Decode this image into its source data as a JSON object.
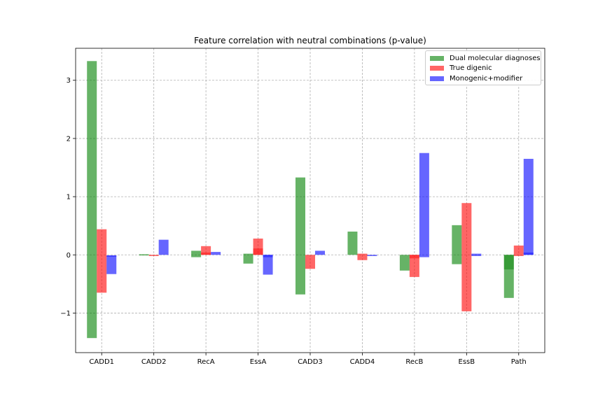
{
  "chart_data": {
    "type": "bar",
    "title": "Feature correlation with neutral combinations (p-value)",
    "xlabel": "",
    "ylabel": "",
    "categories": [
      "CADD1",
      "CADD2",
      "RecA",
      "EssA",
      "CADD3",
      "CADD4",
      "RecB",
      "EssB",
      "Path"
    ],
    "ylim": [
      -1.68,
      3.55
    ],
    "yticks": [
      -1,
      0,
      1,
      2,
      3
    ],
    "grid": true,
    "legend_position": "top-right",
    "series": [
      {
        "name": "Dual molecular diagnoses",
        "color": "#008000",
        "bars": [
          {
            "top": 3.33,
            "bottom": -1.43
          },
          {
            "top": 0.01,
            "bottom": -0.01
          },
          {
            "top": 0.07,
            "bottom": -0.04
          },
          {
            "top": 0.02,
            "bottom": -0.15
          },
          {
            "top": 1.33,
            "bottom": -0.68
          },
          {
            "top": 0.4,
            "bottom": 0.0
          },
          {
            "top": 0.0,
            "bottom": -0.27
          },
          {
            "top": 0.51,
            "bottom": -0.16
          },
          {
            "top": 0.0,
            "bottom": -0.74,
            "dark_segment": [
              -0.25,
              0.0
            ]
          }
        ]
      },
      {
        "name": "True digenic",
        "color": "#ff0000",
        "bars": [
          {
            "top": 0.44,
            "bottom": -0.65
          },
          {
            "top": 0.0,
            "bottom": -0.02
          },
          {
            "top": 0.15,
            "bottom": 0.0,
            "dark_segment": [
              0.0,
              0.04
            ]
          },
          {
            "top": 0.28,
            "bottom": 0.0,
            "dark_segment": [
              0.0,
              0.11
            ]
          },
          {
            "top": 0.0,
            "bottom": -0.24
          },
          {
            "top": 0.02,
            "bottom": -0.09
          },
          {
            "top": 0.0,
            "bottom": -0.38,
            "dark_segment": [
              -0.06,
              0.0
            ]
          },
          {
            "top": 0.89,
            "bottom": -0.97
          },
          {
            "top": 0.16,
            "bottom": -0.02
          }
        ]
      },
      {
        "name": "Monogenic+modifier",
        "color": "#0000ff",
        "bars": [
          {
            "top": -0.01,
            "bottom": -0.33,
            "dark_segment": [
              -0.03,
              -0.01
            ]
          },
          {
            "top": 0.26,
            "bottom": 0.0
          },
          {
            "top": 0.05,
            "bottom": 0.0
          },
          {
            "top": 0.0,
            "bottom": -0.34,
            "dark_segment": [
              -0.04,
              0.0
            ]
          },
          {
            "top": 0.07,
            "bottom": 0.0
          },
          {
            "top": 0.0,
            "bottom": -0.02
          },
          {
            "top": 1.75,
            "bottom": -0.04
          },
          {
            "top": 0.02,
            "bottom": -0.02
          },
          {
            "top": 1.65,
            "bottom": 0.0,
            "dark_segment": [
              0.0,
              0.04
            ]
          }
        ]
      }
    ]
  }
}
